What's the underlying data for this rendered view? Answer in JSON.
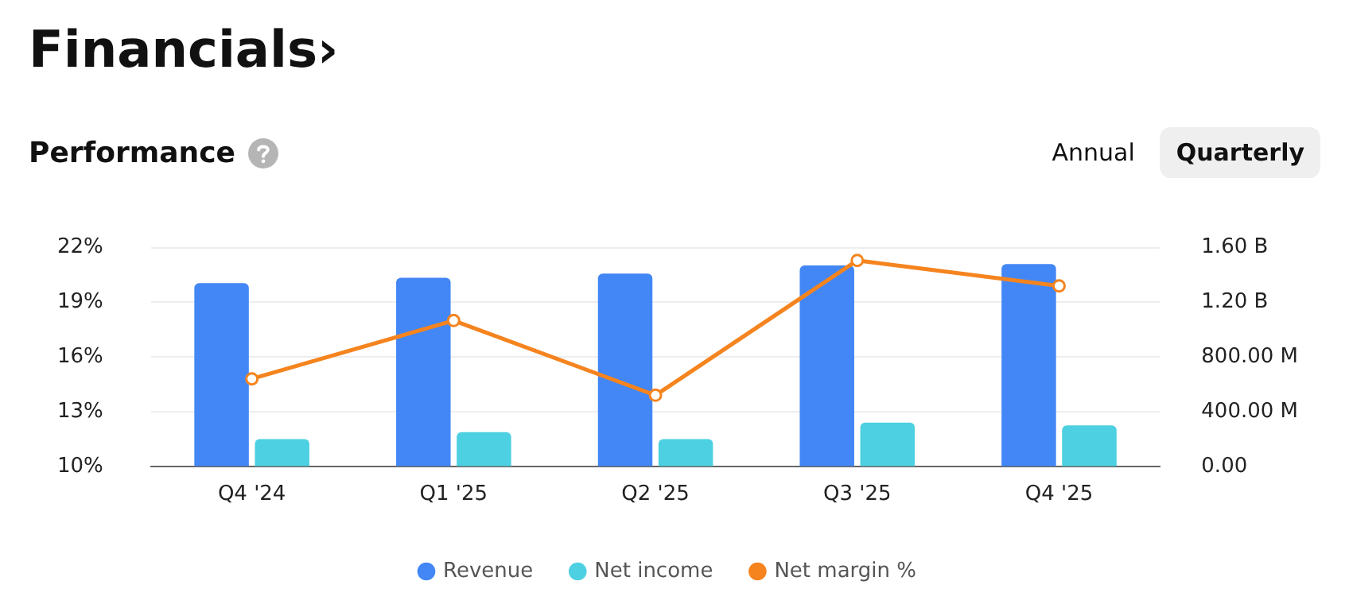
{
  "chart_data": {
    "type": "bar",
    "title": "Financials›",
    "subtitle": "Performance",
    "annotations": [
      "Annual",
      "Quarterly"
    ],
    "categories": [
      "Q4 '24",
      "Q1 '25",
      "Q2 '25",
      "Q3 '25",
      "Q4 '25"
    ],
    "series": [
      {
        "name": "Revenue",
        "color": "#4287f5",
        "axis": "y2",
        "values": [
          1340000000,
          1380000000,
          1410000000,
          1470000000,
          1480000000
        ]
      },
      {
        "name": "Net income",
        "color": "#4dd0e1",
        "axis": "y2",
        "values": [
          200000000,
          250000000,
          200000000,
          320000000,
          300000000
        ]
      },
      {
        "name": "Net margin %",
        "type": "line",
        "color": "#f5841f",
        "values": [
          14.8,
          18.0,
          13.9,
          21.3,
          19.9
        ]
      }
    ],
    "ylim": [
      10,
      22
    ],
    "yticks": [
      {
        "value": 10,
        "label": "10%"
      },
      {
        "value": 13,
        "label": "13%"
      },
      {
        "value": 16,
        "label": "16%"
      },
      {
        "value": 19,
        "label": "19%"
      },
      {
        "value": 22,
        "label": "22%"
      }
    ],
    "y2lim": [
      0,
      1600000000
    ],
    "y2ticks": [
      {
        "value": 0,
        "label": "0.00"
      },
      {
        "value": 400000000,
        "label": "400.00 M"
      },
      {
        "value": 800000000,
        "label": "800.00 M"
      },
      {
        "value": 1200000000,
        "label": "1.20 B"
      },
      {
        "value": 1600000000,
        "label": "1.60 B"
      }
    ],
    "grid": "y",
    "legend": "bottom",
    "marker": "circle",
    "line_style": "solid"
  }
}
